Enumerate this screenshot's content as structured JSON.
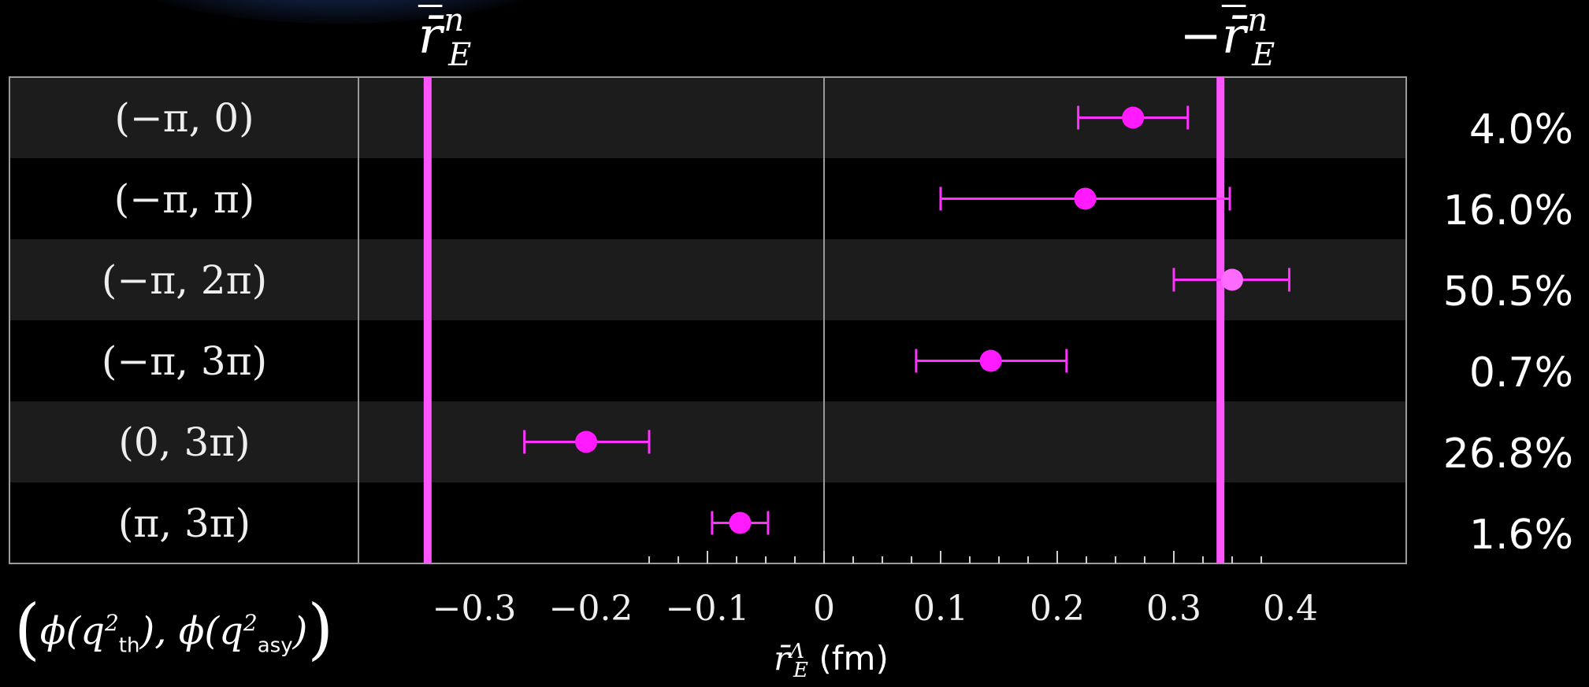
{
  "chart_data": {
    "type": "scatter",
    "title": "",
    "xlabel_symbol": "r̄",
    "xlabel_sup": "Λ",
    "xlabel_sub": "E",
    "xlabel_unit": "(fm)",
    "ylabel_prefix": "(",
    "ylabel_phi1": "ϕ(q",
    "ylabel_sup1": "2",
    "ylabel_sub1": "th",
    "ylabel_mid": "), ϕ(q",
    "ylabel_sup2": "2",
    "ylabel_sub2": "asy",
    "ylabel_end": ")",
    "ylabel_suffix": ")",
    "xlim": [
      -0.4,
      0.5
    ],
    "x_ticks": [
      -0.3,
      -0.2,
      -0.1,
      0,
      0.1,
      0.2,
      0.3,
      0.4
    ],
    "x_tick_labels": [
      "−0.3",
      "−0.2",
      "−0.1",
      "0",
      "0.1",
      "0.2",
      "0.3",
      "0.4"
    ],
    "reference_lines": [
      {
        "label_main": "r̄",
        "label_sup": "n",
        "label_sub": "E",
        "label_prefix": "",
        "x": -0.34
      },
      {
        "label_main": "r̄",
        "label_sup": "n",
        "label_sub": "E",
        "label_prefix": "−",
        "x": 0.34
      }
    ],
    "rows": [
      {
        "label": "(−π, 0)",
        "value": 0.265,
        "err_low": 0.218,
        "err_high": 0.312,
        "weight": "4.0%",
        "highlight": false
      },
      {
        "label": "(−π, π)",
        "value": 0.224,
        "err_low": 0.1,
        "err_high": 0.348,
        "weight": "16.0%",
        "highlight": false
      },
      {
        "label": "(−π, 2π)",
        "value": 0.35,
        "err_low": 0.3,
        "err_high": 0.399,
        "weight": "50.5%",
        "highlight": true
      },
      {
        "label": "(−π, 3π)",
        "value": 0.143,
        "err_low": 0.079,
        "err_high": 0.208,
        "weight": "0.7%",
        "highlight": false
      },
      {
        "label": "(0, 3π)",
        "value": -0.204,
        "err_low": -0.257,
        "err_high": -0.15,
        "weight": "26.8%",
        "highlight": false
      },
      {
        "label": "(π, 3π)",
        "value": -0.072,
        "err_low": -0.096,
        "err_high": -0.048,
        "weight": "1.6%",
        "highlight": false
      }
    ]
  },
  "colors": {
    "point": "#ff1aff",
    "point_highlight": "#ff6aff",
    "errorbar": "#ff33ff",
    "refline": "#ff55ff",
    "row_odd": "#1c1c1c",
    "row_even": "#000000",
    "frame": "#9a9a9a"
  }
}
